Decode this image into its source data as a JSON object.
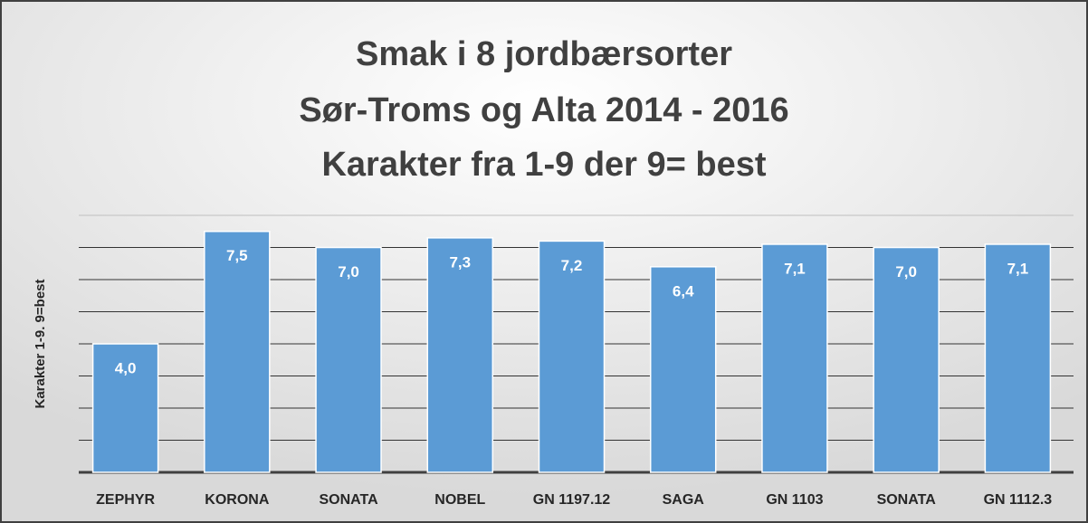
{
  "chart_data": {
    "type": "bar",
    "title": [
      "Smak i 8 jordbærsorter",
      "Sør-Troms og Alta 2014 - 2016",
      "Karakter fra 1-9 der 9= best"
    ],
    "y_label": "Karakter 1-9. 9=best",
    "categories": [
      "ZEPHYR",
      "KORONA",
      "SONATA",
      "NOBEL",
      "GN 1197.12",
      "SAGA",
      "GN 1103",
      "SONATA",
      "GN 1112.3"
    ],
    "values": [
      4.0,
      7.5,
      7.0,
      7.3,
      7.2,
      6.4,
      7.1,
      7.0,
      7.1
    ],
    "value_labels": [
      "4,0",
      "7,5",
      "7,0",
      "7,3",
      "7,2",
      "6,4",
      "7,1",
      "7,0",
      "7,1"
    ],
    "color": "#5b9bd5",
    "ylim": [
      0,
      8
    ],
    "yticks": [
      0,
      1,
      2,
      3,
      4,
      5,
      6,
      7,
      8
    ],
    "grid": true
  }
}
